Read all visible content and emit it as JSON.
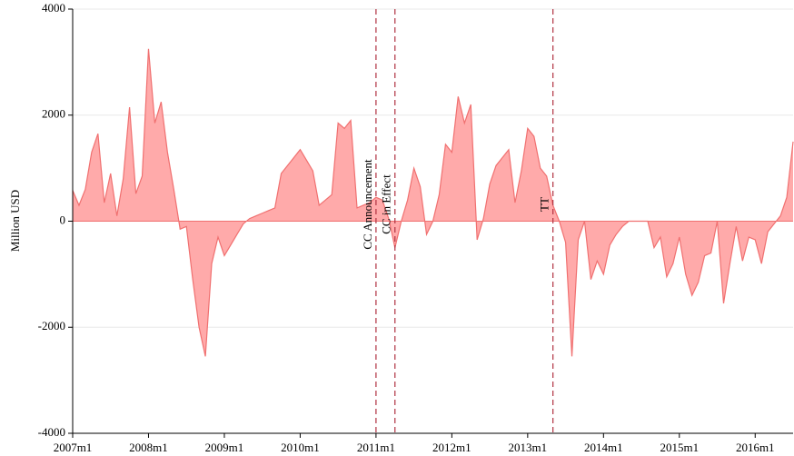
{
  "chart_data": {
    "type": "area",
    "y_label": "Million USD",
    "categories": [
      "2007m1",
      null,
      null,
      null,
      null,
      null,
      null,
      null,
      null,
      null,
      null,
      null,
      "2008m1",
      null,
      null,
      null,
      null,
      null,
      null,
      null,
      null,
      null,
      null,
      null,
      "2009m1",
      null,
      null,
      null,
      null,
      null,
      null,
      null,
      null,
      null,
      null,
      null,
      "2010m1",
      null,
      null,
      null,
      null,
      null,
      null,
      null,
      null,
      null,
      null,
      null,
      "2011m1",
      null,
      null,
      null,
      null,
      null,
      null,
      null,
      null,
      null,
      null,
      null,
      "2012m1",
      null,
      null,
      null,
      null,
      null,
      null,
      null,
      null,
      null,
      null,
      null,
      "2013m1",
      null,
      null,
      null,
      null,
      null,
      null,
      null,
      null,
      null,
      null,
      null,
      "2014m1",
      null,
      null,
      null,
      null,
      null,
      null,
      null,
      null,
      null,
      null,
      null,
      "2015m1",
      null,
      null,
      null,
      null,
      null,
      null,
      null,
      null,
      null,
      null,
      null,
      "2016m1",
      null,
      null,
      null,
      null,
      null,
      null
    ],
    "values": [
      580,
      300,
      600,
      1300,
      1650,
      350,
      900,
      100,
      800,
      2150,
      520,
      850,
      3250,
      1850,
      2250,
      1300,
      600,
      -150,
      -100,
      -1100,
      -2000,
      -2550,
      -800,
      -300,
      -650,
      -450,
      -250,
      -50,
      50,
      100,
      150,
      200,
      250,
      900,
      1050,
      1200,
      1350,
      1150,
      950,
      300,
      400,
      500,
      1850,
      1750,
      1900,
      250,
      300,
      350,
      450,
      400,
      50,
      -500,
      0,
      400,
      1000,
      650,
      -250,
      0,
      500,
      1450,
      1300,
      2350,
      1850,
      2200,
      -350,
      50,
      700,
      1050,
      1200,
      1350,
      350,
      950,
      1750,
      1600,
      1000,
      850,
      300,
      0,
      -400,
      -2550,
      -350,
      0,
      -1100,
      -750,
      -1000,
      -450,
      -250,
      -100,
      0,
      0,
      0,
      0,
      -500,
      -300,
      -1050,
      -800,
      -300,
      -1000,
      -1400,
      -1150,
      -650,
      -600,
      0,
      -1550,
      -800,
      -100,
      -750,
      -300,
      -350,
      -800,
      -200,
      -50,
      100,
      450,
      1500
    ],
    "color": "#f07070",
    "fill": "#ffaaaa",
    "ylim": [
      -4000,
      4000
    ],
    "yticks": [
      -4000,
      -2000,
      0,
      2000,
      4000
    ],
    "grid": true,
    "annotations": [
      {
        "text": "CC Announcement",
        "index": 48
      },
      {
        "text": "CC in Effect",
        "index": 51
      },
      {
        "text": "TT",
        "index": 76
      }
    ],
    "annotation_color": "#b03040"
  }
}
